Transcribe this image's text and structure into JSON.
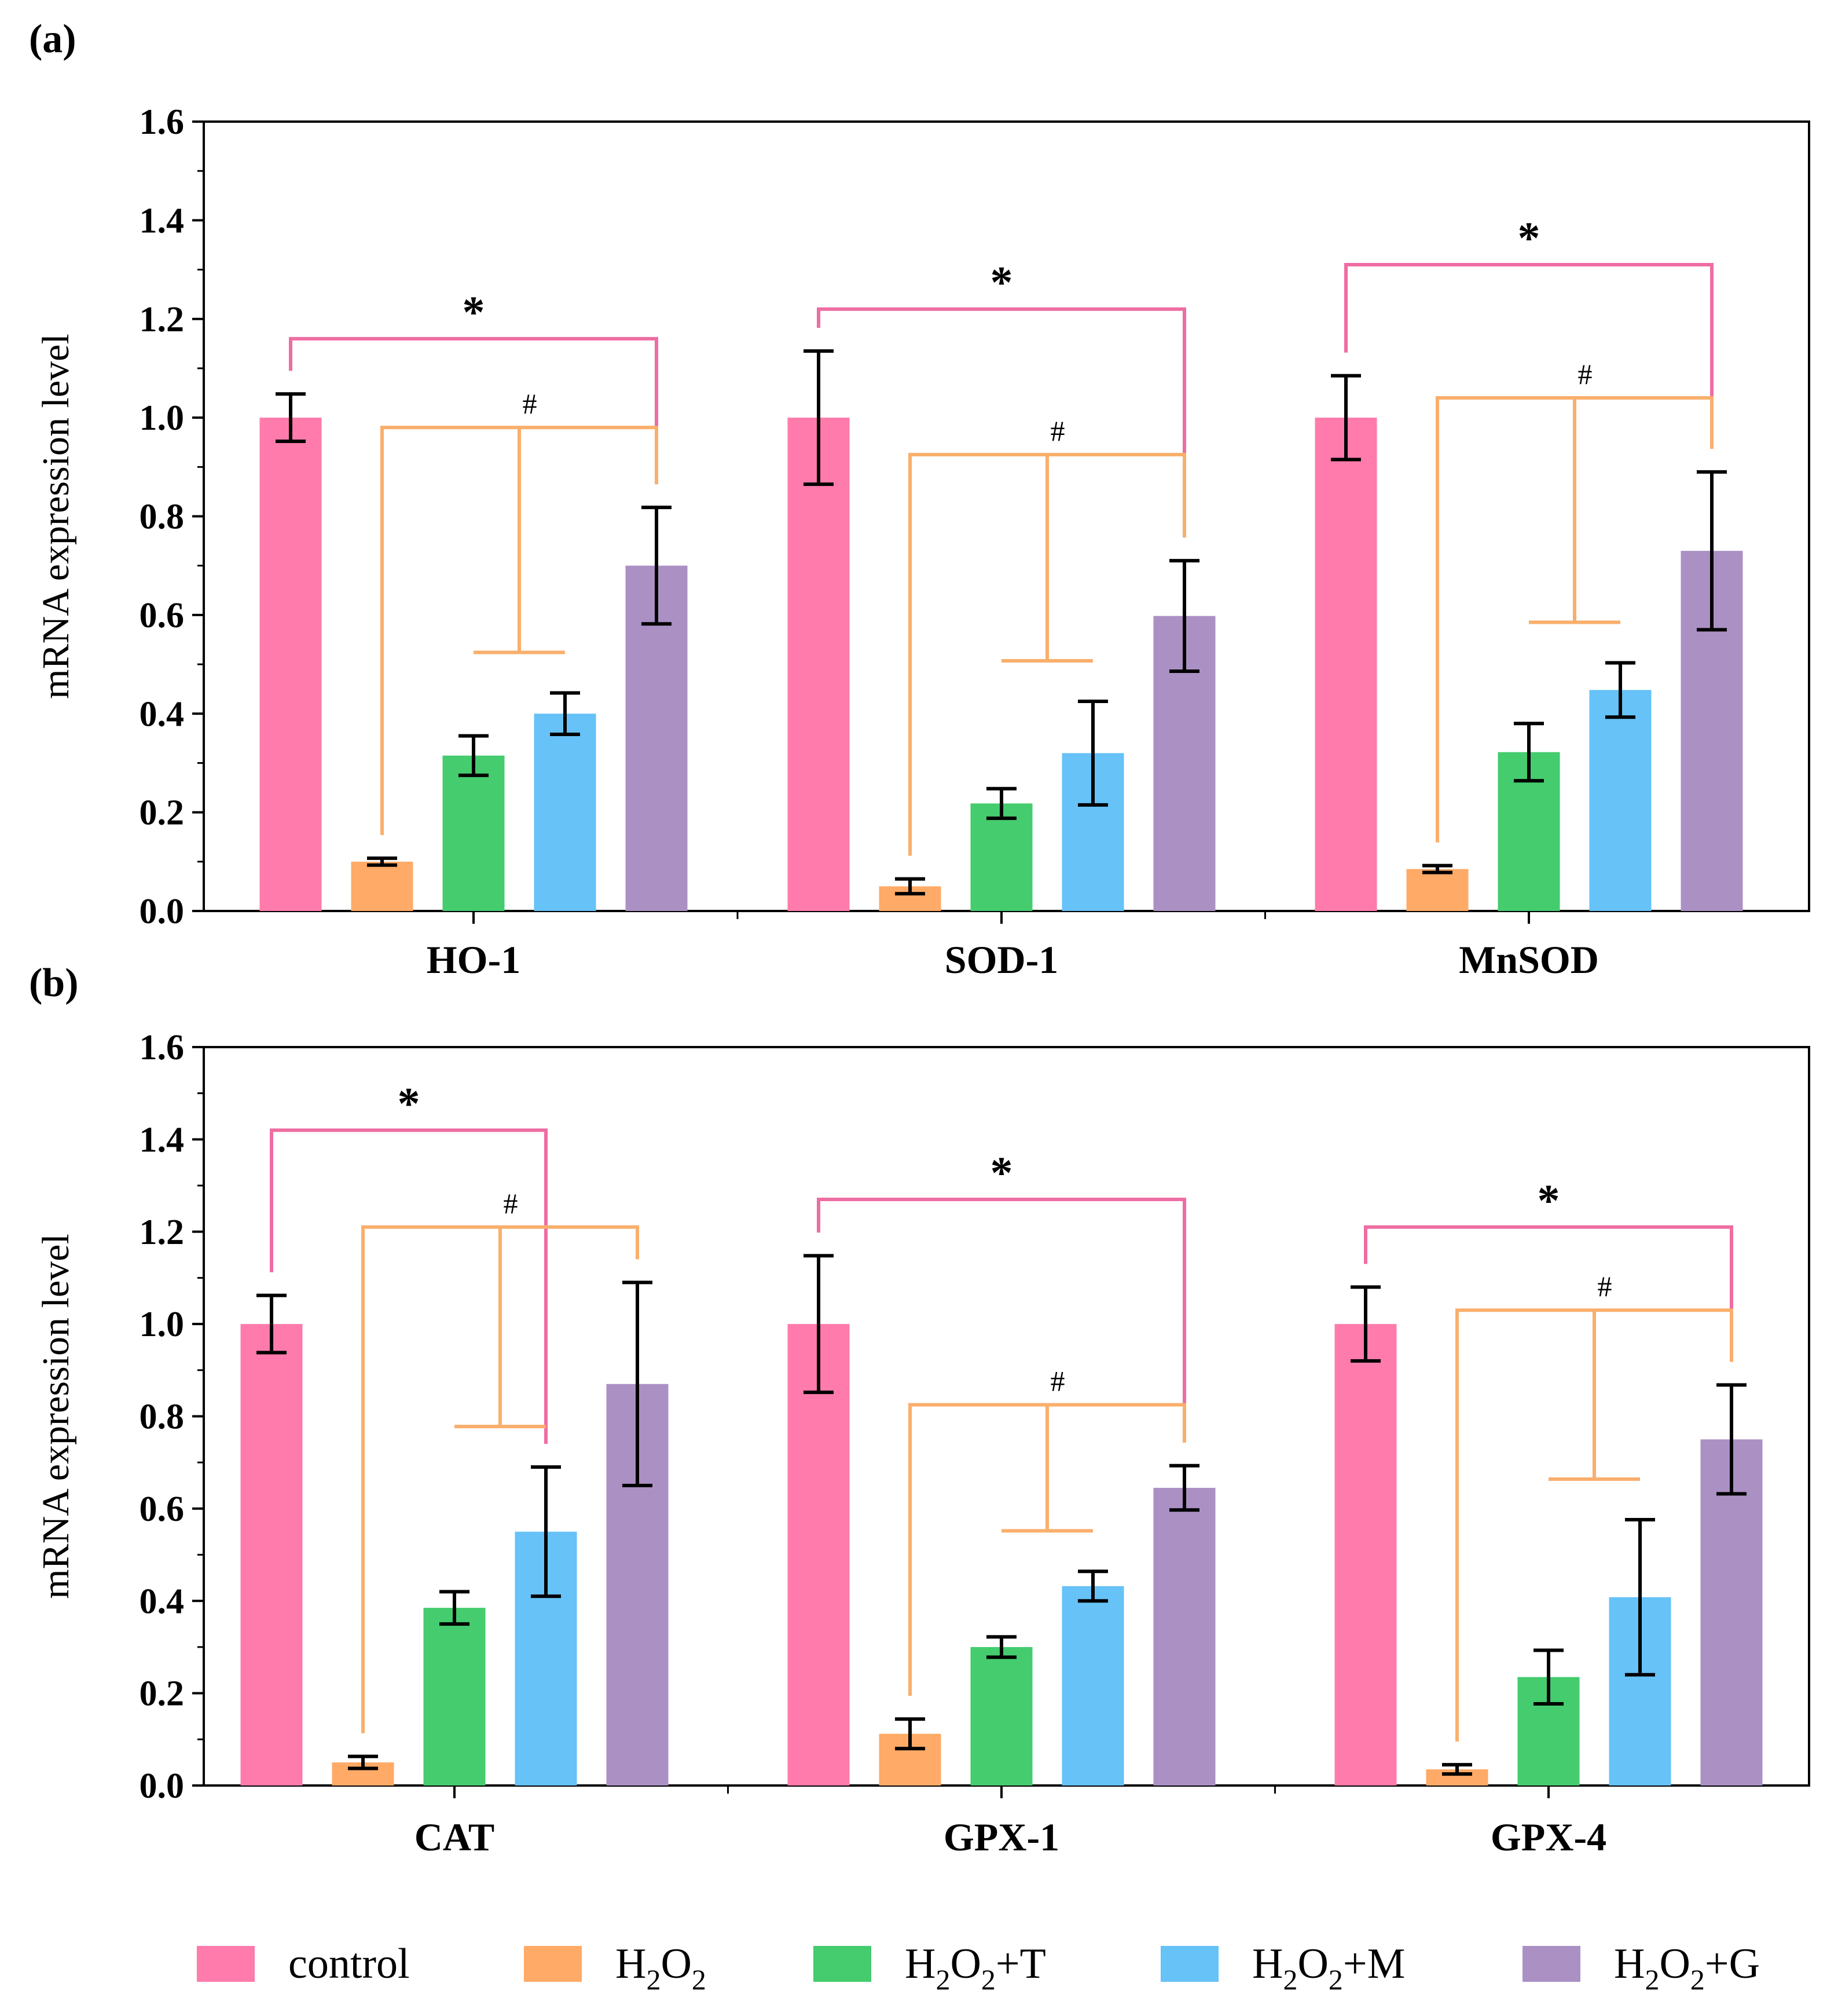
{
  "legend": [
    {
      "label": "control",
      "color": "#FF7BAC"
    },
    {
      "label": "H2O2",
      "base": "H",
      "sub": "2",
      "mid": "O",
      "sub2": "2",
      "suffix": "",
      "color": "#FFAA66"
    },
    {
      "label": "H2O2+T",
      "base": "H",
      "sub": "2",
      "mid": "O",
      "sub2": "2",
      "suffix": "+T",
      "color": "#44CC6E"
    },
    {
      "label": "H2O2+M",
      "base": "H",
      "sub": "2",
      "mid": "O",
      "sub2": "2",
      "suffix": "+M",
      "color": "#66C2F7"
    },
    {
      "label": "H2O2+G",
      "base": "H",
      "sub": "2",
      "mid": "O",
      "sub2": "2",
      "suffix": "+G",
      "color": "#AB90C4"
    }
  ],
  "colors": {
    "star_bracket": "#EE6DA2",
    "hash_bracket": "#F9AF6C"
  },
  "chart_data": [
    {
      "panel": "(a)",
      "type": "bar",
      "ylabel": "mRNA expression level",
      "ylim": [
        0,
        1.6
      ],
      "yticks": [
        "0.0",
        "0.2",
        "0.4",
        "0.6",
        "0.8",
        "1.0",
        "1.2",
        "1.4",
        "1.6"
      ],
      "categories": [
        "HO-1",
        "SOD-1",
        "MnSOD"
      ],
      "series": [
        {
          "name": "control",
          "values": [
            1.0,
            1.0,
            1.0
          ],
          "errors": [
            0.048,
            0.135,
            0.085
          ]
        },
        {
          "name": "H2O2",
          "values": [
            0.1,
            0.05,
            0.085
          ],
          "errors": [
            0.007,
            0.015,
            0.007
          ]
        },
        {
          "name": "H2O2+T",
          "values": [
            0.315,
            0.218,
            0.322
          ],
          "errors": [
            0.04,
            0.03,
            0.058
          ]
        },
        {
          "name": "H2O2+M",
          "values": [
            0.4,
            0.32,
            0.448
          ],
          "errors": [
            0.042,
            0.105,
            0.055
          ]
        },
        {
          "name": "H2O2+G",
          "values": [
            0.7,
            0.598,
            0.73
          ],
          "errors": [
            0.118,
            0.112,
            0.16
          ]
        }
      ],
      "annotations": [
        {
          "text": "*",
          "group": 0,
          "kind": "star",
          "y": 1.16,
          "from": 0,
          "to": 4
        },
        {
          "text": "#",
          "group": 0,
          "kind": "hash",
          "y": 0.98,
          "from": 1,
          "to": 4
        },
        {
          "text": "*",
          "group": 1,
          "kind": "star",
          "y": 1.22,
          "from": 0,
          "to": 4
        },
        {
          "text": "#",
          "group": 1,
          "kind": "hash",
          "y": 0.925,
          "from": 1,
          "to": 4
        },
        {
          "text": "*",
          "group": 2,
          "kind": "star",
          "y": 1.31,
          "from": 0,
          "to": 4
        },
        {
          "text": "#",
          "group": 2,
          "kind": "hash",
          "y": 1.04,
          "from": 1,
          "to": 4
        }
      ]
    },
    {
      "panel": "(b)",
      "type": "bar",
      "ylabel": "mRNA expression level",
      "ylim": [
        0,
        1.6
      ],
      "yticks": [
        "0.0",
        "0.2",
        "0.4",
        "0.6",
        "0.8",
        "1.0",
        "1.2",
        "1.4",
        "1.6"
      ],
      "categories": [
        "CAT",
        "GPX-1",
        "GPX-4"
      ],
      "series": [
        {
          "name": "control",
          "values": [
            1.0,
            1.0,
            1.0
          ],
          "errors": [
            0.062,
            0.148,
            0.08
          ]
        },
        {
          "name": "H2O2",
          "values": [
            0.05,
            0.112,
            0.035
          ],
          "errors": [
            0.013,
            0.032,
            0.01
          ]
        },
        {
          "name": "H2O2+T",
          "values": [
            0.385,
            0.3,
            0.235
          ],
          "errors": [
            0.035,
            0.022,
            0.058
          ]
        },
        {
          "name": "H2O2+M",
          "values": [
            0.55,
            0.432,
            0.408
          ],
          "errors": [
            0.14,
            0.032,
            0.168
          ]
        },
        {
          "name": "H2O2+G",
          "values": [
            0.87,
            0.645,
            0.75
          ],
          "errors": [
            0.22,
            0.048,
            0.118
          ]
        }
      ],
      "annotations": [
        {
          "text": "*",
          "group": 0,
          "kind": "star",
          "y": 1.42,
          "from": 0,
          "to": 3
        },
        {
          "text": "#",
          "group": 0,
          "kind": "hash",
          "y": 1.21,
          "from": 1,
          "to": 4
        },
        {
          "text": "*",
          "group": 1,
          "kind": "star",
          "y": 1.27,
          "from": 0,
          "to": 4
        },
        {
          "text": "#",
          "group": 1,
          "kind": "hash",
          "y": 0.825,
          "from": 1,
          "to": 4
        },
        {
          "text": "*",
          "group": 2,
          "kind": "star",
          "y": 1.21,
          "from": 0,
          "to": 4
        },
        {
          "text": "#",
          "group": 2,
          "kind": "hash",
          "y": 1.03,
          "from": 1,
          "to": 4
        }
      ]
    }
  ]
}
